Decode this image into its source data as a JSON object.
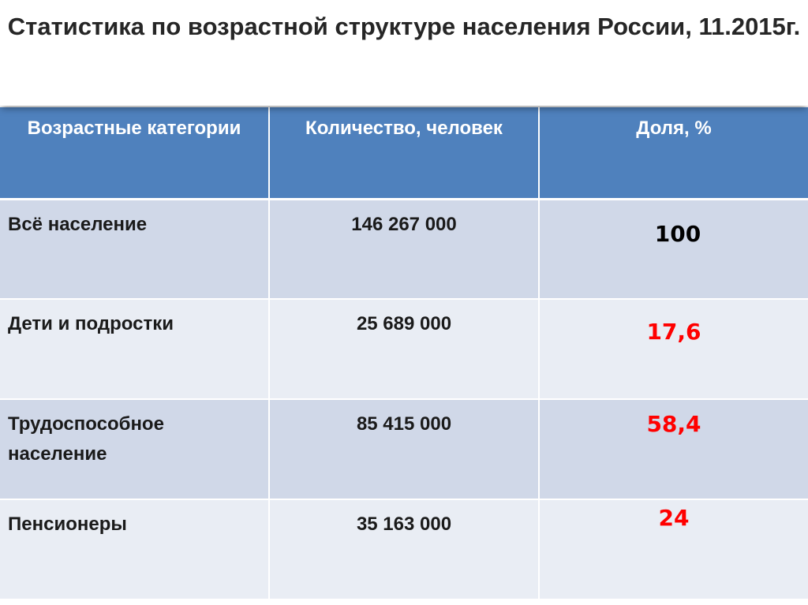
{
  "title": "Статистика по возрастной структуре населения России, 11.2015г.",
  "table": {
    "headers": [
      "Возрастные категории",
      "Количество, человек",
      "Доля, %"
    ],
    "rows": [
      {
        "category": "Всё население",
        "count": "146 267 000",
        "share": "100"
      },
      {
        "category": "Дети и подростки",
        "count": "25 689 000",
        "share": "17,6"
      },
      {
        "category": "Трудоспособное население",
        "count": "85 415 000",
        "share": "58,4"
      },
      {
        "category": "Пенсионеры",
        "count": "35 163 000",
        "share": "24"
      }
    ]
  },
  "colors": {
    "header_bg": "#4f81bd",
    "row_dark_bg": "#d0d8e8",
    "row_light_bg": "#e9edf4",
    "share_total": "#000000",
    "share_highlight": "#ff0000"
  }
}
